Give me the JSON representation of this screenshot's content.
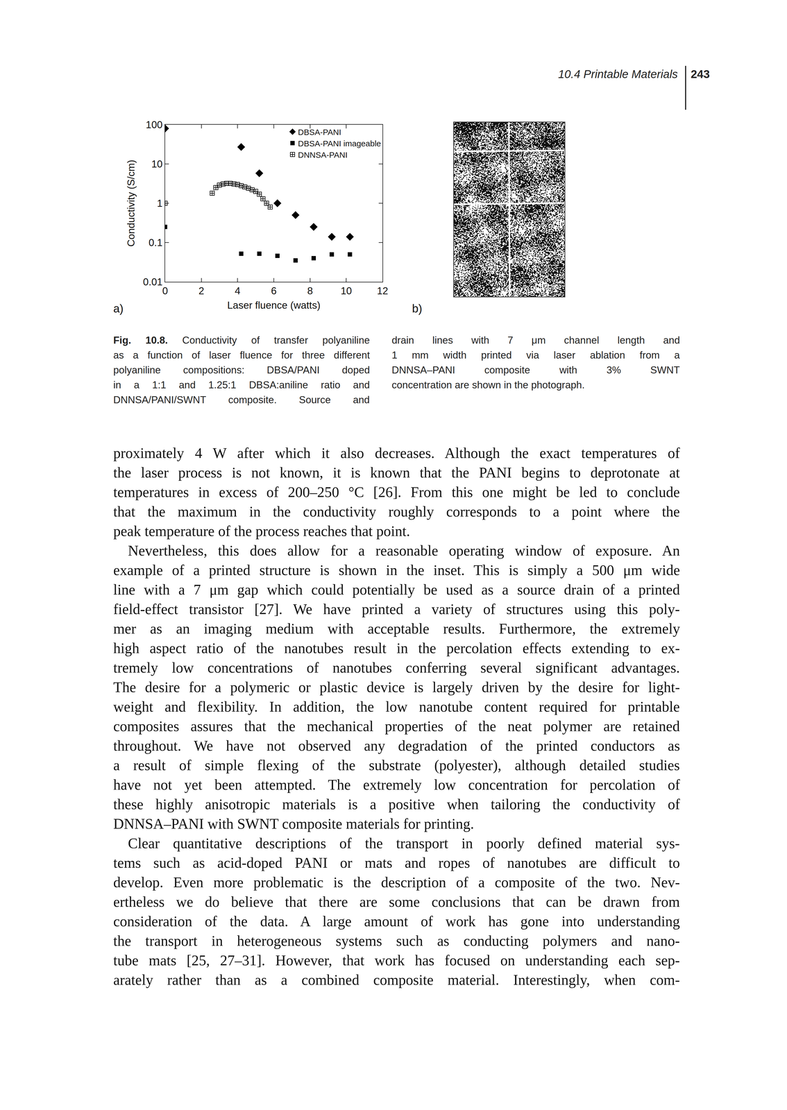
{
  "header": {
    "section": "10.4 Printable Materials",
    "page": "243"
  },
  "figure": {
    "panel_labels": [
      "a)",
      "b)"
    ]
  },
  "chart_data": {
    "type": "scatter",
    "xlabel": "Laser fluence (watts)",
    "ylabel": "Conductivity (S/cm)",
    "xlim": [
      0,
      12
    ],
    "xticks": [
      0,
      2,
      4,
      6,
      8,
      10,
      12
    ],
    "ylim": [
      0.01,
      100
    ],
    "yticks": [
      0.01,
      0.1,
      1,
      10,
      100
    ],
    "log": "y",
    "grid": false,
    "legend": "top right",
    "series": [
      {
        "name": "DBSA-PANI",
        "color": "#000000",
        "marker": "diamond",
        "x": [
          0,
          4.2,
          5.2,
          6.2,
          7.2,
          8.2,
          9.2,
          10.2
        ],
        "values": [
          80,
          27,
          5.8,
          1.0,
          0.5,
          0.25,
          0.14,
          0.14
        ]
      },
      {
        "name": "DBSA-PANI imageable",
        "color": "#000000",
        "marker": "square",
        "x": [
          0,
          4.2,
          5.2,
          6.2,
          7.2,
          8.2,
          9.2,
          10.2
        ],
        "values": [
          0.25,
          0.052,
          0.052,
          0.046,
          0.035,
          0.04,
          0.05,
          0.05
        ]
      },
      {
        "name": "DNNSA-PANI",
        "color": "#000000",
        "marker": "square-cross-open",
        "x": [
          0,
          2.6,
          2.8,
          3.0,
          3.2,
          3.4,
          3.6,
          3.8,
          4.0,
          4.2,
          4.4,
          4.6,
          4.8,
          5.0,
          5.2,
          5.4,
          5.6,
          5.8
        ],
        "values": [
          1.0,
          1.8,
          2.5,
          2.9,
          3.1,
          3.2,
          3.2,
          3.1,
          3.0,
          2.8,
          2.6,
          2.4,
          2.2,
          2.0,
          1.7,
          1.3,
          1.0,
          0.8
        ]
      }
    ]
  },
  "caption": {
    "label": "Fig. 10.8.",
    "left_lines": [
      "Conductivity of transfer polyaniline",
      "as a function of laser fluence for three different",
      "polyaniline compositions: DBSA/PANI doped",
      "in a 1:1 and 1.25:1 DBSA:aniline ratio and",
      "DNNSA/PANI/SWNT composite. Source and"
    ],
    "right_lines": [
      "drain lines with 7 μm channel length and",
      "1 mm width printed via laser ablation from a",
      "DNNSA–PANI composite with 3% SWNT",
      "concentration are shown in the photograph."
    ]
  },
  "body": {
    "paragraphs": [
      [
        "proximately 4 W after which it also decreases. Although the exact temperatures of",
        "the laser process is not known, it is known that the PANI begins to deprotonate at",
        "temperatures in excess of 200–250 °C [26]. From this one might be led to conclude",
        "that the maximum in the conductivity roughly corresponds to a point where the",
        "peak temperature of the process reaches that point."
      ],
      [
        "Nevertheless, this does allow for a reasonable operating window of exposure. An",
        "example of a printed structure is shown in the inset. This is simply a 500 μm wide",
        "line with a 7 μm gap which could potentially be used as a source drain of a printed",
        "field-effect transistor [27]. We have printed a variety of structures using this poly-",
        "mer as an imaging medium with acceptable results. Furthermore, the extremely",
        "high aspect ratio of the nanotubes result in the percolation effects extending to ex-",
        "tremely low concentrations of nanotubes conferring several significant advantages.",
        "The desire for a polymeric or plastic device is largely driven by the desire for light-",
        "weight and flexibility. In addition, the low nanotube content required for printable",
        "composites assures that the mechanical properties of the neat polymer are retained",
        "throughout. We have not observed any degradation of the printed conductors as",
        "a result of simple flexing of the substrate (polyester), although detailed studies",
        "have not yet been attempted. The extremely low concentration for percolation of",
        "these highly anisotropic materials is a positive when tailoring the conductivity of",
        "DNNSA–PANI with SWNT composite materials for printing."
      ],
      [
        "Clear quantitative descriptions of the transport in poorly defined material sys-",
        "tems such as acid-doped PANI or mats and ropes of nanotubes are difficult to",
        "develop. Even more problematic is the description of a composite of the two. Nev-",
        "ertheless we do believe that there are some conclusions that can be drawn from",
        "consideration of the data. A large amount of work has gone into understanding",
        "the transport in heterogeneous systems such as conducting polymers and nano-",
        "tube mats [25, 27–31]. However, that work has focused on understanding each sep-",
        "arately rather than as a combined composite material. Interestingly, when com-"
      ]
    ]
  }
}
